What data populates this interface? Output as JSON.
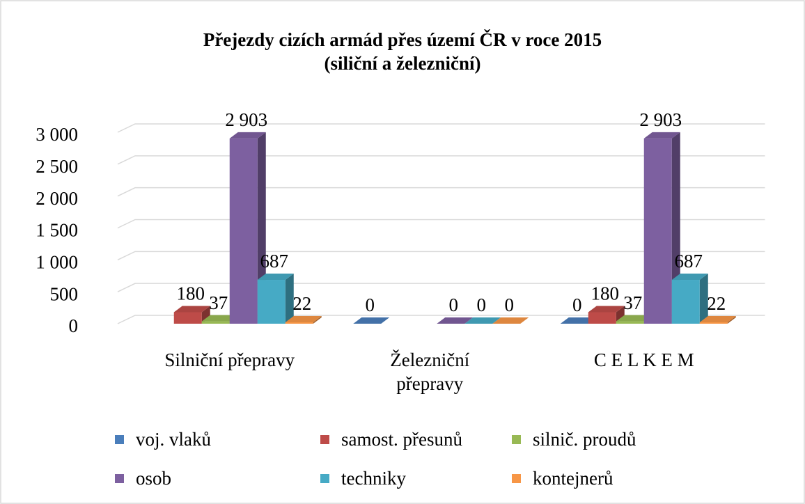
{
  "chart_data": {
    "type": "bar3d",
    "title": "Přejezdy cizích armád přes území ČR v roce 2015 (siliční a železniční)",
    "categories": [
      "Silniční přepravy",
      "Železniční přepravy",
      "C E L K E M"
    ],
    "series": [
      {
        "name": "voj. vlaků",
        "color": "#4a7ebb",
        "values": [
          null,
          0,
          0
        ]
      },
      {
        "name": "samost. přesunů",
        "color": "#be4b48",
        "values": [
          180,
          null,
          180
        ]
      },
      {
        "name": "silnič. proudů",
        "color": "#98b954",
        "values": [
          37,
          null,
          37
        ]
      },
      {
        "name": "osob",
        "color": "#7d60a0",
        "values": [
          2903,
          0,
          2903
        ],
        "value_labels": [
          "2 903",
          "0",
          "2 903"
        ]
      },
      {
        "name": "techniky",
        "color": "#46aac5",
        "values": [
          687,
          0,
          687
        ]
      },
      {
        "name": "kontejnerů",
        "color": "#f79646",
        "values": [
          22,
          0,
          22
        ]
      }
    ],
    "ylim": [
      0,
      3000
    ],
    "yticks": [
      0,
      500,
      {
        "value": 1000,
        "label": "1 000"
      },
      {
        "value": 1500,
        "label": "1 500"
      },
      {
        "value": 2000,
        "label": "2 000"
      },
      {
        "value": 2500,
        "label": "2 500"
      },
      {
        "value": 3000,
        "label": "3 000"
      }
    ],
    "grid": true,
    "legend": "bottom"
  }
}
